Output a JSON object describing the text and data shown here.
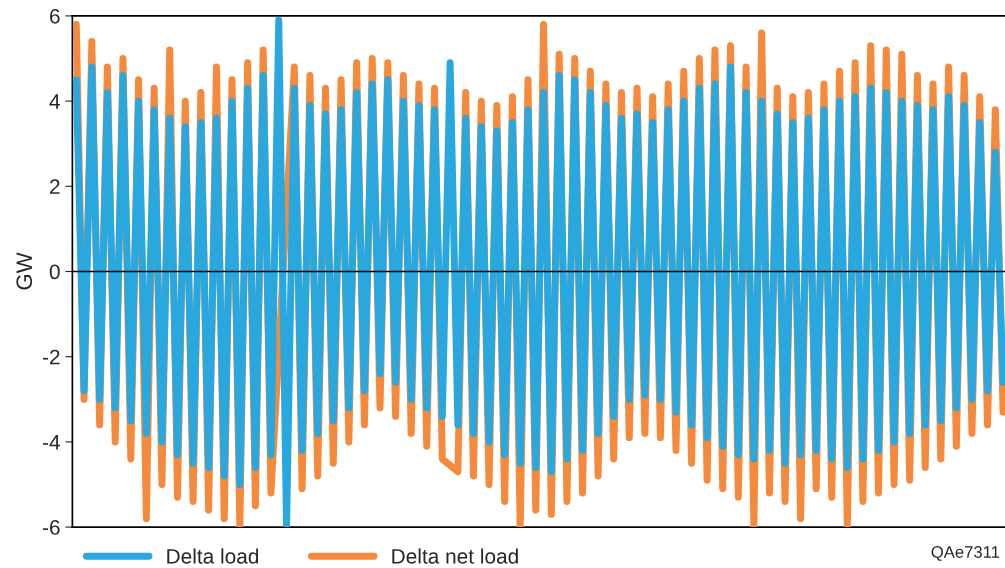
{
  "chart_data": {
    "type": "line",
    "ylabel": "GW",
    "categories": [
      null,
      null,
      null,
      null,
      null,
      null,
      null,
      null,
      null,
      null,
      null,
      null,
      null,
      null,
      null,
      null,
      null,
      null,
      null,
      null,
      null,
      null,
      null,
      null,
      null,
      null,
      null,
      null,
      null,
      null,
      null,
      null,
      null,
      null,
      null,
      null,
      null,
      null,
      null,
      null,
      null,
      null,
      null,
      null,
      null,
      null,
      null,
      null,
      null,
      null,
      null,
      null,
      null,
      null,
      null,
      null,
      null,
      null,
      null,
      null,
      null,
      null,
      null,
      null,
      null,
      null,
      null,
      null,
      null,
      null,
      null,
      null,
      null,
      null,
      null,
      null,
      null,
      null,
      null,
      null,
      null,
      null,
      null,
      null,
      null,
      null,
      null,
      null,
      null,
      null,
      null,
      null,
      null,
      null,
      null,
      null,
      null,
      null,
      null,
      null,
      null,
      null,
      null,
      null,
      null,
      null,
      null,
      null,
      null,
      null,
      null,
      null,
      null,
      null,
      null,
      null,
      null,
      null,
      null,
      null
    ],
    "series": [
      {
        "name": "Delta load",
        "color": "#29a8e0",
        "values": [
          4.5,
          -2.8,
          4.8,
          -3.0,
          4.2,
          -3.2,
          4.6,
          -3.5,
          4.0,
          -3.8,
          3.8,
          -4.0,
          3.6,
          -4.3,
          3.4,
          -4.5,
          3.5,
          -4.6,
          3.6,
          -4.8,
          4.0,
          -5.0,
          4.3,
          -4.6,
          4.6,
          -4.3,
          5.9,
          -6.0,
          4.3,
          -4.2,
          3.9,
          -3.8,
          3.7,
          -3.5,
          3.8,
          -3.2,
          4.2,
          -2.8,
          4.4,
          -2.4,
          4.5,
          -2.6,
          4.0,
          -3.0,
          3.9,
          -3.2,
          3.8,
          -3.4,
          4.9,
          -3.6,
          3.6,
          -3.8,
          3.4,
          -4.0,
          3.3,
          -4.3,
          3.5,
          -4.5,
          3.8,
          -4.6,
          4.2,
          -4.7,
          4.6,
          -4.4,
          4.5,
          -4.2,
          4.2,
          -3.8,
          3.9,
          -3.4,
          3.6,
          -3.0,
          3.7,
          -2.9,
          3.5,
          -3.0,
          3.8,
          -3.3,
          4.0,
          -3.6,
          4.3,
          -3.9,
          4.4,
          -4.1,
          4.8,
          -4.3,
          4.2,
          -4.4,
          4.0,
          -4.2,
          3.7,
          -4.5,
          3.5,
          -4.3,
          3.6,
          -4.2,
          3.8,
          -4.4,
          4.0,
          -4.6,
          4.1,
          -4.4,
          4.3,
          -4.2,
          4.2,
          -4.0,
          4.0,
          -3.8,
          3.9,
          -3.6,
          3.8,
          -3.5,
          4.1,
          -3.2,
          3.9,
          -3.0,
          3.5,
          -2.8,
          2.8,
          -2.6
        ]
      },
      {
        "name": "Delta net load",
        "color": "#f58a3c",
        "values": [
          5.8,
          -3.0,
          5.4,
          -3.6,
          4.8,
          -4.0,
          5.0,
          -4.4,
          4.5,
          -5.8,
          4.3,
          -5.0,
          5.2,
          -5.3,
          4.0,
          -5.4,
          4.2,
          -5.6,
          4.8,
          -5.8,
          4.5,
          -6.0,
          4.9,
          -5.5,
          5.2,
          -5.2,
          null,
          null,
          4.8,
          -5.1,
          4.6,
          -4.8,
          4.3,
          -4.5,
          4.5,
          -4.0,
          4.9,
          -3.6,
          5.0,
          -3.2,
          4.9,
          -3.4,
          4.6,
          -3.8,
          4.4,
          -4.1,
          4.3,
          -4.4,
          null,
          -4.7,
          4.2,
          -4.8,
          4.0,
          -5.0,
          3.9,
          -5.4,
          4.1,
          -6.0,
          4.5,
          -5.6,
          5.8,
          -5.7,
          5.1,
          -5.4,
          5.0,
          -5.2,
          4.7,
          -4.8,
          4.4,
          -4.4,
          4.2,
          -3.9,
          4.3,
          -3.8,
          4.1,
          -3.9,
          4.4,
          -4.2,
          4.7,
          -4.5,
          5.0,
          -4.9,
          5.2,
          -5.1,
          5.3,
          -5.3,
          4.8,
          -6.0,
          5.6,
          -5.2,
          4.3,
          -5.4,
          4.1,
          -5.8,
          4.2,
          -5.1,
          4.4,
          -5.3,
          4.7,
          -6.0,
          4.9,
          -5.4,
          5.3,
          -5.2,
          5.2,
          -5.0,
          5.1,
          -4.9,
          4.6,
          -4.6,
          4.4,
          -4.4,
          4.8,
          -4.1,
          4.6,
          -3.8,
          4.1,
          -3.6,
          3.8,
          -3.3
        ]
      }
    ],
    "ylim": [
      -6,
      6
    ],
    "yticks": [
      -6,
      -4,
      -2,
      0,
      2,
      4,
      6
    ],
    "ref_lines": [
      {
        "axis": "y",
        "value": 0,
        "color": "#000000"
      }
    ],
    "grid": false,
    "legend": "bottom",
    "tick_labels": "y",
    "marker": "none",
    "line_style": "solid",
    "annotations": [
      "QAe7311"
    ]
  }
}
